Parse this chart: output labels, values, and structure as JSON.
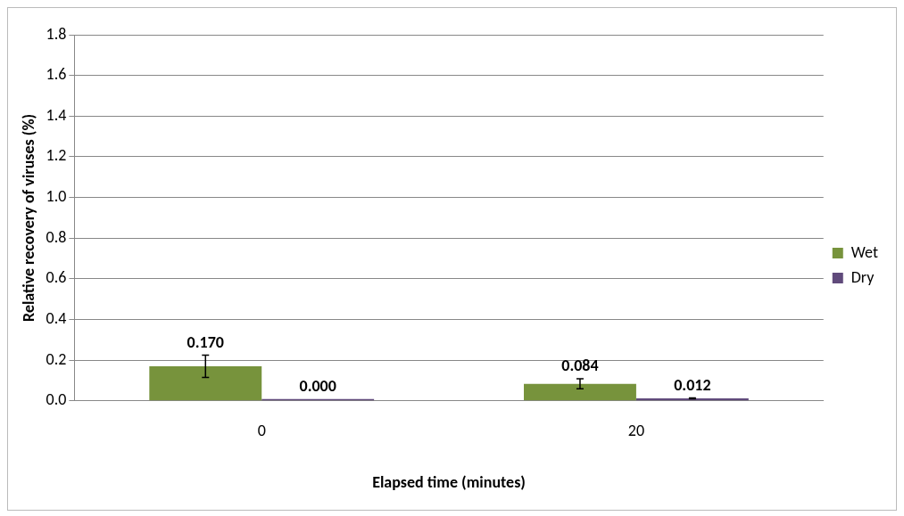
{
  "chart_data": {
    "type": "bar",
    "xlabel": "Elapsed time (minutes)",
    "ylabel": "Relative recovery of viruses (%)",
    "categories": [
      "0",
      "20"
    ],
    "series": [
      {
        "name": "Wet",
        "color": "#77933c",
        "values": [
          0.17,
          0.084
        ],
        "errors": [
          0.055,
          0.025
        ],
        "value_labels": [
          "0.170",
          "0.084"
        ]
      },
      {
        "name": "Dry",
        "color": "#604a7b",
        "values": [
          0.0,
          0.012
        ],
        "errors": [
          null,
          0.002
        ],
        "value_labels": [
          "0.000",
          "0.012"
        ]
      }
    ],
    "ylim": [
      0,
      1.8
    ],
    "yticks": [
      {
        "value": 0,
        "label": "0.0"
      },
      {
        "value": 0.2,
        "label": "0.2"
      },
      {
        "value": 0.4,
        "label": "0.4"
      },
      {
        "value": 0.6,
        "label": "0.6"
      },
      {
        "value": 0.8,
        "label": "0.8"
      },
      {
        "value": 1,
        "label": "1.0"
      },
      {
        "value": 1.2,
        "label": "1.2"
      },
      {
        "value": 1.4,
        "label": "1.4"
      },
      {
        "value": 1.6,
        "label": "1.6"
      },
      {
        "value": 1.8,
        "label": "1.8"
      }
    ],
    "grid": "y",
    "legend": "right"
  }
}
